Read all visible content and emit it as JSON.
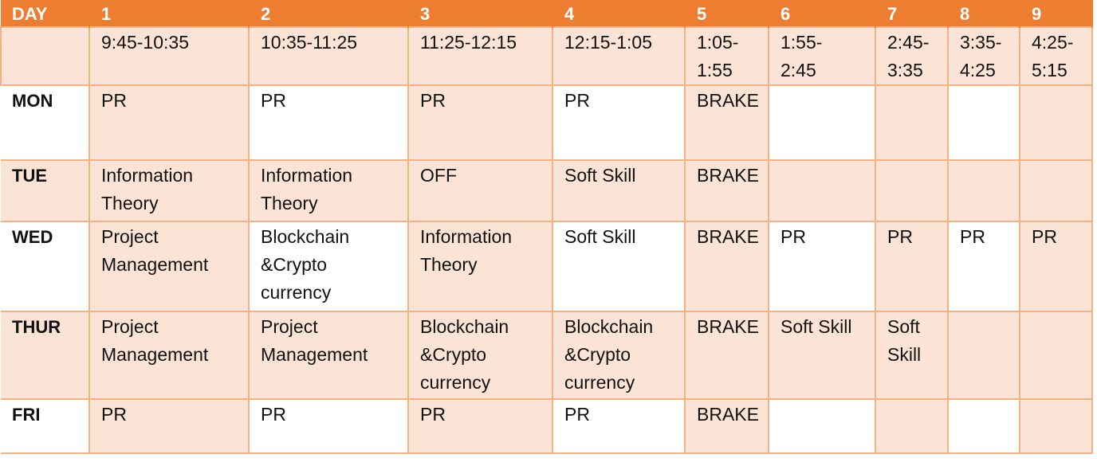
{
  "header": {
    "day_label": "DAY",
    "periods": [
      "1",
      "2",
      "3",
      "4",
      "5",
      "6",
      "7",
      "8",
      "9"
    ]
  },
  "times": [
    "9:45-10:35",
    "10:35-11:25",
    "11:25-12:15",
    "12:15-1:05",
    "1:05-\n1:55",
    "1:55-\n2:45",
    "2:45-\n3:35",
    "3:35-\n4:25",
    "4:25-\n5:15"
  ],
  "days": [
    {
      "name": "MON",
      "cells": [
        "PR",
        "PR",
        "PR",
        "PR",
        "BRAKE",
        "",
        "",
        "",
        ""
      ]
    },
    {
      "name": "TUE",
      "cells": [
        "Information\nTheory",
        "Information\nTheory",
        "OFF",
        "Soft Skill",
        "BRAKE",
        "",
        "",
        "",
        ""
      ]
    },
    {
      "name": "WED",
      "cells": [
        "Project\nManagement",
        "Blockchain\n&Crypto\ncurrency",
        "Information\nTheory",
        "Soft Skill",
        "BRAKE",
        "PR",
        "PR",
        "PR",
        "PR"
      ]
    },
    {
      "name": "THUR",
      "cells": [
        "Project\nManagement",
        "Project\nManagement",
        "Blockchain\n&Crypto\ncurrency",
        "Blockchain\n&Crypto\ncurrency",
        "BRAKE",
        "Soft Skill",
        "Soft\nSkill",
        "",
        ""
      ]
    },
    {
      "name": "FRI",
      "cells": [
        "PR",
        "PR",
        "PR",
        "PR",
        "BRAKE",
        "",
        "",
        "",
        ""
      ]
    }
  ],
  "colors": {
    "header": "#ed7d31",
    "light": "#fbe4d5",
    "white": "#ffffff",
    "border": "#f4b183"
  }
}
